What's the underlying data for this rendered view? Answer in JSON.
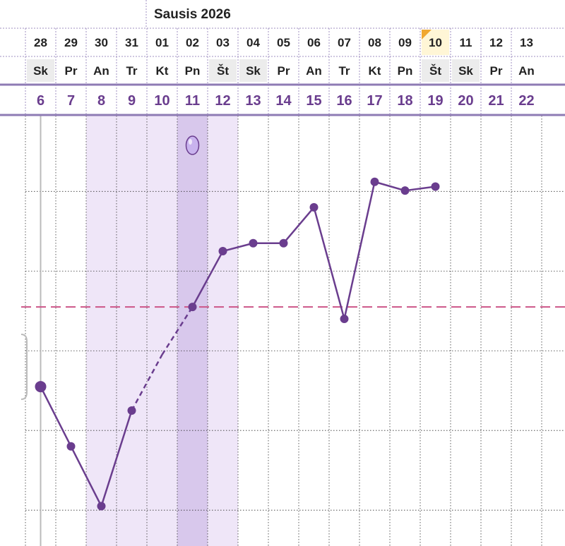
{
  "header": {
    "month_title": "Sausis 2026"
  },
  "calendar": {
    "dates": [
      "28",
      "29",
      "30",
      "31",
      "01",
      "02",
      "03",
      "04",
      "05",
      "06",
      "07",
      "08",
      "09",
      "10",
      "11",
      "12",
      "13"
    ],
    "weekdays": [
      "Sk",
      "Pr",
      "An",
      "Tr",
      "Kt",
      "Pn",
      "Št",
      "Sk",
      "Pr",
      "An",
      "Tr",
      "Kt",
      "Pn",
      "Št",
      "Sk",
      "Pr",
      "An"
    ],
    "cycle_days": [
      "6",
      "7",
      "8",
      "9",
      "10",
      "11",
      "12",
      "13",
      "14",
      "15",
      "16",
      "17",
      "18",
      "19",
      "20",
      "21",
      "22"
    ],
    "today_index": 13,
    "fertile_window_indices": [
      2,
      3,
      4,
      5,
      6
    ],
    "ovulation_index": 5,
    "ovulation_icon": "egg-icon"
  },
  "colors": {
    "series": "#6a3d8e",
    "fertile_band": "#efe6f8",
    "ovulation_band": "#d8c8ec",
    "coverline": "#cc5588",
    "today_bg": "#fff6d6",
    "today_marker": "#f0a830",
    "weekend_bg": "#ececec",
    "grid": "#333333",
    "header_rule": "#8e7bb4"
  },
  "chart_data": {
    "type": "line",
    "x": [
      "6",
      "7",
      "8",
      "9",
      "10",
      "11",
      "12",
      "13",
      "14",
      "15",
      "16",
      "17",
      "18",
      "19"
    ],
    "values": [
      -0.95,
      -1.7,
      -2.45,
      -1.25,
      -0.55,
      0.05,
      0.75,
      0.85,
      0.85,
      1.3,
      -0.1,
      1.62,
      1.51,
      1.56
    ],
    "interpolated_segment": [
      3,
      5
    ],
    "coverline": 0.05,
    "ylim": [
      -2.95,
      2.45
    ],
    "grid": true
  }
}
